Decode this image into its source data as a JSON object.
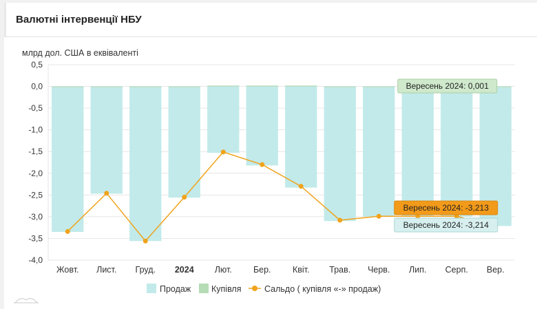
{
  "header": {
    "title": "Валютні інтервенції НБУ"
  },
  "colors": {
    "sale": "#c2eaea",
    "purchase": "#b5dcb5",
    "balance": "#f0a31c",
    "grid": "#e6e6e6",
    "tip_purchase": "#cfe9cc",
    "tip_balance": "#f29a1a",
    "tip_sale": "#d7f0ef"
  },
  "chart_data": {
    "type": "bar",
    "ylabel": "млрд дол. США в еквіваленті",
    "ylim": [
      -4.0,
      0.5
    ],
    "yticks": [
      "0,5",
      "0,0",
      "-0,5",
      "-1,0",
      "-1,5",
      "-2,0",
      "-2,5",
      "-3,0",
      "-3,5",
      "-4,0"
    ],
    "ytick_values": [
      0.5,
      0.0,
      -0.5,
      -1.0,
      -1.5,
      -2.0,
      -2.5,
      -3.0,
      -3.5,
      -4.0
    ],
    "categories": [
      "Жовт.",
      "Лист.",
      "Груд.",
      "2024",
      "Лют.",
      "Бер.",
      "Квіт.",
      "Трав.",
      "Черв.",
      "Лип.",
      "Серп.",
      "Вер."
    ],
    "bold_category": "2024",
    "series": [
      {
        "name": "Продаж",
        "kind": "bar",
        "values": [
          -3.35,
          -2.47,
          -3.56,
          -2.56,
          -1.53,
          -1.82,
          -2.33,
          -3.1,
          -3.0,
          -3.0,
          -3.0,
          -3.214
        ]
      },
      {
        "name": "Купівля",
        "kind": "bar",
        "values": [
          0.0,
          0.0,
          0.0,
          0.0,
          0.02,
          0.02,
          0.02,
          0.0,
          0.0,
          0.0,
          0.0,
          0.001
        ]
      },
      {
        "name": "Сальдо ( купівля «-» продаж)",
        "kind": "line",
        "values": [
          -3.34,
          -2.46,
          -3.56,
          -2.55,
          -1.51,
          -1.8,
          -2.3,
          -3.08,
          -2.99,
          -2.99,
          -2.99,
          -3.213
        ]
      }
    ],
    "tooltips": {
      "purchase": "Вересень 2024: 0,001",
      "balance": "Вересень 2024: -3,213",
      "sale": "Вересень 2024: -3,214"
    },
    "legend_position": "bottom",
    "grid": true
  }
}
